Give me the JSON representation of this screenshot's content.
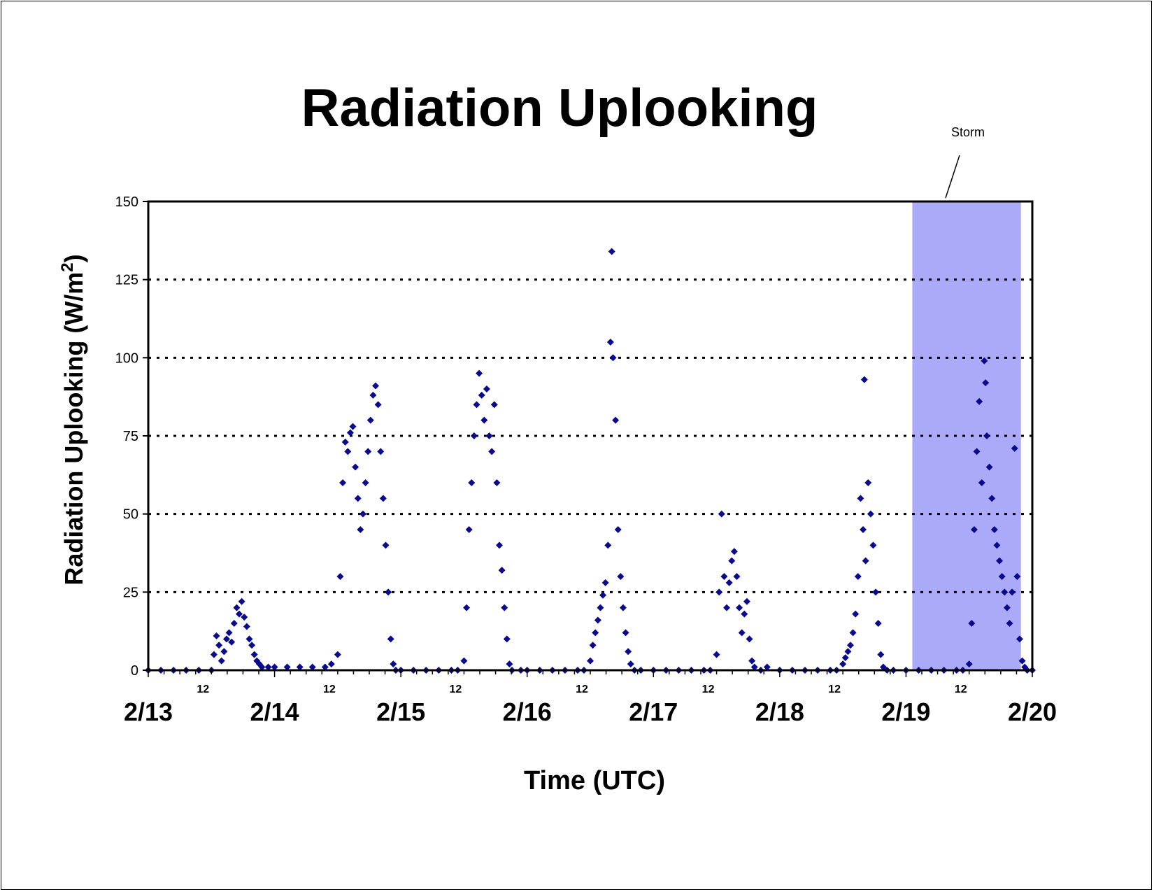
{
  "chart_data": {
    "type": "scatter",
    "title": "Radiation Uplooking",
    "ylabel_main": "Radiation Uplooking (W/m",
    "ylabel_sup": "2",
    "ylabel_close": ")",
    "xlabel": "Time (UTC)",
    "ylim": [
      0,
      150
    ],
    "xlim_days": [
      0,
      7
    ],
    "y_ticks": [
      {
        "value": 0,
        "label": "0"
      },
      {
        "value": 25,
        "label": "25"
      },
      {
        "value": 50,
        "label": "50"
      },
      {
        "value": 75,
        "label": "75"
      },
      {
        "value": 100,
        "label": "100"
      },
      {
        "value": 125,
        "label": "125"
      },
      {
        "value": 150,
        "label": "150"
      }
    ],
    "x_major_ticks": [
      {
        "day": 0,
        "label": "2/13"
      },
      {
        "day": 1,
        "label": "2/14"
      },
      {
        "day": 2,
        "label": "2/15"
      },
      {
        "day": 3,
        "label": "2/16"
      },
      {
        "day": 4,
        "label": "2/17"
      },
      {
        "day": 5,
        "label": "2/18"
      },
      {
        "day": 6,
        "label": "2/19"
      },
      {
        "day": 7,
        "label": "2/20"
      }
    ],
    "x_minor_ticks": [
      {
        "day": 0.5,
        "label": "12"
      },
      {
        "day": 1.5,
        "label": "12"
      },
      {
        "day": 2.5,
        "label": "12"
      },
      {
        "day": 3.5,
        "label": "12"
      },
      {
        "day": 4.5,
        "label": "12"
      },
      {
        "day": 5.5,
        "label": "12"
      },
      {
        "day": 6.5,
        "label": "12"
      }
    ],
    "grid": "horizontal dotted",
    "storm": {
      "label": "Storm",
      "start_day": 6.05,
      "end_day": 6.91,
      "color": "#aaaaf8"
    },
    "marker_color": "#0a0a8c",
    "series": [
      {
        "values": [
          [
            0.0,
            0
          ],
          [
            0.1,
            0
          ],
          [
            0.2,
            0
          ],
          [
            0.3,
            0
          ],
          [
            0.4,
            0
          ],
          [
            0.5,
            0
          ],
          [
            0.52,
            5
          ],
          [
            0.54,
            11
          ],
          [
            0.56,
            8
          ],
          [
            0.58,
            3
          ],
          [
            0.6,
            6
          ],
          [
            0.62,
            10
          ],
          [
            0.64,
            12
          ],
          [
            0.66,
            9
          ],
          [
            0.68,
            15
          ],
          [
            0.7,
            20
          ],
          [
            0.72,
            18
          ],
          [
            0.74,
            22
          ],
          [
            0.76,
            17
          ],
          [
            0.78,
            14
          ],
          [
            0.8,
            10
          ],
          [
            0.82,
            8
          ],
          [
            0.84,
            5
          ],
          [
            0.86,
            3
          ],
          [
            0.88,
            2
          ],
          [
            0.9,
            1
          ],
          [
            0.95,
            1
          ],
          [
            1.0,
            1
          ],
          [
            1.1,
            1
          ],
          [
            1.2,
            1
          ],
          [
            1.3,
            1
          ],
          [
            1.4,
            1
          ],
          [
            1.45,
            2
          ],
          [
            1.5,
            5
          ],
          [
            1.52,
            30
          ],
          [
            1.54,
            60
          ],
          [
            1.56,
            73
          ],
          [
            1.58,
            70
          ],
          [
            1.6,
            76
          ],
          [
            1.62,
            78
          ],
          [
            1.64,
            65
          ],
          [
            1.66,
            55
          ],
          [
            1.68,
            45
          ],
          [
            1.7,
            50
          ],
          [
            1.72,
            60
          ],
          [
            1.74,
            70
          ],
          [
            1.76,
            80
          ],
          [
            1.78,
            88
          ],
          [
            1.8,
            91
          ],
          [
            1.82,
            85
          ],
          [
            1.84,
            70
          ],
          [
            1.86,
            55
          ],
          [
            1.88,
            40
          ],
          [
            1.9,
            25
          ],
          [
            1.92,
            10
          ],
          [
            1.94,
            2
          ],
          [
            1.96,
            0
          ],
          [
            2.0,
            0
          ],
          [
            2.1,
            0
          ],
          [
            2.2,
            0
          ],
          [
            2.3,
            0
          ],
          [
            2.4,
            0
          ],
          [
            2.45,
            0
          ],
          [
            2.5,
            3
          ],
          [
            2.52,
            20
          ],
          [
            2.54,
            45
          ],
          [
            2.56,
            60
          ],
          [
            2.58,
            75
          ],
          [
            2.6,
            85
          ],
          [
            2.62,
            95
          ],
          [
            2.64,
            88
          ],
          [
            2.66,
            80
          ],
          [
            2.68,
            90
          ],
          [
            2.7,
            75
          ],
          [
            2.72,
            70
          ],
          [
            2.74,
            85
          ],
          [
            2.76,
            60
          ],
          [
            2.78,
            40
          ],
          [
            2.8,
            32
          ],
          [
            2.82,
            20
          ],
          [
            2.84,
            10
          ],
          [
            2.86,
            2
          ],
          [
            2.88,
            0
          ],
          [
            2.95,
            0
          ],
          [
            3.0,
            0
          ],
          [
            3.1,
            0
          ],
          [
            3.2,
            0
          ],
          [
            3.3,
            0
          ],
          [
            3.4,
            0
          ],
          [
            3.45,
            0
          ],
          [
            3.5,
            3
          ],
          [
            3.52,
            8
          ],
          [
            3.54,
            12
          ],
          [
            3.56,
            16
          ],
          [
            3.58,
            20
          ],
          [
            3.6,
            24
          ],
          [
            3.62,
            28
          ],
          [
            3.64,
            40
          ],
          [
            3.66,
            105
          ],
          [
            3.67,
            134
          ],
          [
            3.68,
            100
          ],
          [
            3.7,
            80
          ],
          [
            3.72,
            45
          ],
          [
            3.74,
            30
          ],
          [
            3.76,
            20
          ],
          [
            3.78,
            12
          ],
          [
            3.8,
            6
          ],
          [
            3.82,
            2
          ],
          [
            3.85,
            0
          ],
          [
            3.9,
            0
          ],
          [
            4.0,
            0
          ],
          [
            4.1,
            0
          ],
          [
            4.2,
            0
          ],
          [
            4.3,
            0
          ],
          [
            4.4,
            0
          ],
          [
            4.45,
            0
          ],
          [
            4.5,
            5
          ],
          [
            4.52,
            25
          ],
          [
            4.54,
            50
          ],
          [
            4.56,
            30
          ],
          [
            4.58,
            20
          ],
          [
            4.6,
            28
          ],
          [
            4.62,
            35
          ],
          [
            4.64,
            38
          ],
          [
            4.66,
            30
          ],
          [
            4.68,
            20
          ],
          [
            4.7,
            12
          ],
          [
            4.72,
            18
          ],
          [
            4.74,
            22
          ],
          [
            4.76,
            10
          ],
          [
            4.78,
            3
          ],
          [
            4.8,
            1
          ],
          [
            4.85,
            0
          ],
          [
            4.9,
            1
          ],
          [
            5.0,
            0
          ],
          [
            5.1,
            0
          ],
          [
            5.2,
            0
          ],
          [
            5.3,
            0
          ],
          [
            5.4,
            0
          ],
          [
            5.45,
            0
          ],
          [
            5.5,
            2
          ],
          [
            5.52,
            4
          ],
          [
            5.54,
            6
          ],
          [
            5.56,
            8
          ],
          [
            5.58,
            12
          ],
          [
            5.6,
            18
          ],
          [
            5.62,
            30
          ],
          [
            5.64,
            55
          ],
          [
            5.66,
            45
          ],
          [
            5.67,
            93
          ],
          [
            5.68,
            35
          ],
          [
            5.7,
            60
          ],
          [
            5.72,
            50
          ],
          [
            5.74,
            40
          ],
          [
            5.76,
            25
          ],
          [
            5.78,
            15
          ],
          [
            5.8,
            5
          ],
          [
            5.82,
            1
          ],
          [
            5.85,
            0
          ],
          [
            5.9,
            0
          ],
          [
            6.0,
            0
          ],
          [
            6.1,
            0
          ],
          [
            6.2,
            0
          ],
          [
            6.3,
            0
          ],
          [
            6.4,
            0
          ],
          [
            6.45,
            0
          ],
          [
            6.5,
            2
          ],
          [
            6.52,
            15
          ],
          [
            6.54,
            45
          ],
          [
            6.56,
            70
          ],
          [
            6.58,
            86
          ],
          [
            6.6,
            60
          ],
          [
            6.62,
            99
          ],
          [
            6.63,
            92
          ],
          [
            6.64,
            75
          ],
          [
            6.66,
            65
          ],
          [
            6.68,
            55
          ],
          [
            6.7,
            45
          ],
          [
            6.72,
            40
          ],
          [
            6.74,
            35
          ],
          [
            6.76,
            30
          ],
          [
            6.78,
            25
          ],
          [
            6.8,
            20
          ],
          [
            6.82,
            15
          ],
          [
            6.84,
            25
          ],
          [
            6.86,
            71
          ],
          [
            6.88,
            30
          ],
          [
            6.9,
            10
          ],
          [
            6.92,
            3
          ],
          [
            6.94,
            1
          ],
          [
            6.96,
            0
          ],
          [
            7.0,
            0
          ]
        ]
      }
    ]
  }
}
